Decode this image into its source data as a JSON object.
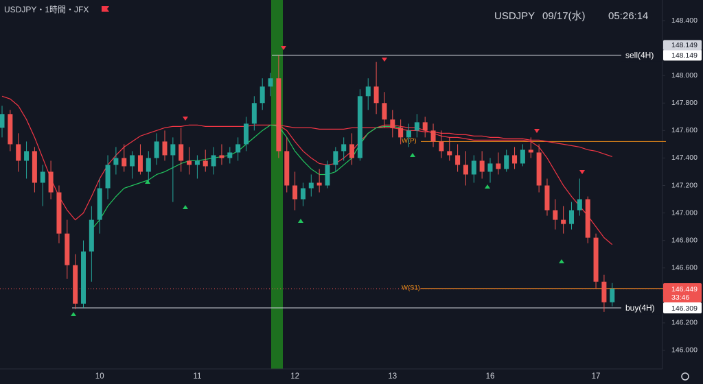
{
  "chart_data": {
    "type": "candlestick",
    "title": "USDJPY・1時間・JFX",
    "info_symbol": "USDJPY",
    "info_date": "09/17(水)",
    "info_time": "05:26:14",
    "up_color": "#26a69a",
    "down_color": "#ef5350",
    "grid": false,
    "ylim": [
      145.865,
      148.55
    ],
    "yticks": [
      {
        "value": 146,
        "label": "146.000"
      },
      {
        "value": 146.2,
        "label": "146.200"
      },
      {
        "value": 146.4,
        "label": "146.400"
      },
      {
        "value": 146.6,
        "label": "146.600"
      },
      {
        "value": 146.8,
        "label": "146.800"
      },
      {
        "value": 147,
        "label": "147.000"
      },
      {
        "value": 147.2,
        "label": "147.200"
      },
      {
        "value": 147.4,
        "label": "147.400"
      },
      {
        "value": 147.6,
        "label": "147.600"
      },
      {
        "value": 147.8,
        "label": "147.800"
      },
      {
        "value": 148,
        "label": "148.000"
      },
      {
        "value": 148.2,
        "label": "148.200"
      },
      {
        "value": 148.4,
        "label": "148.400"
      }
    ],
    "categories": [
      null,
      null,
      null,
      null,
      null,
      null,
      null,
      null,
      null,
      null,
      null,
      null,
      "10",
      null,
      null,
      null,
      null,
      null,
      null,
      null,
      null,
      null,
      null,
      null,
      "11",
      null,
      null,
      null,
      null,
      null,
      null,
      null,
      null,
      null,
      null,
      null,
      "12",
      null,
      null,
      null,
      null,
      null,
      null,
      null,
      null,
      null,
      null,
      null,
      "13",
      null,
      null,
      null,
      null,
      null,
      null,
      null,
      null,
      null,
      null,
      null,
      "16",
      null,
      null,
      null,
      null,
      null,
      null,
      null,
      null,
      null,
      null,
      null,
      null,
      "17",
      null,
      null
    ],
    "ohlc": [
      [
        147.62,
        147.78,
        147.55,
        147.72
      ],
      [
        147.72,
        147.75,
        147.45,
        147.5
      ],
      [
        147.5,
        147.58,
        147.3,
        147.38
      ],
      [
        147.38,
        147.52,
        147.25,
        147.45
      ],
      [
        147.45,
        147.48,
        147.15,
        147.22
      ],
      [
        147.22,
        147.35,
        147.05,
        147.3
      ],
      [
        147.3,
        147.38,
        147.1,
        147.15
      ],
      [
        147.15,
        147.2,
        146.78,
        146.85
      ],
      [
        146.85,
        146.95,
        146.52,
        146.62
      ],
      [
        146.62,
        146.7,
        146.3,
        146.34
      ],
      [
        146.34,
        146.8,
        146.31,
        146.72
      ],
      [
        146.72,
        147.05,
        146.5,
        146.95
      ],
      [
        146.95,
        147.25,
        146.85,
        147.18
      ],
      [
        147.18,
        147.42,
        147.1,
        147.35
      ],
      [
        147.35,
        147.48,
        147.28,
        147.4
      ],
      [
        147.4,
        147.5,
        147.3,
        147.34
      ],
      [
        147.34,
        147.45,
        147.25,
        147.42
      ],
      [
        147.42,
        147.5,
        147.28,
        147.3
      ],
      [
        147.3,
        147.45,
        147.22,
        147.4
      ],
      [
        147.4,
        147.58,
        147.35,
        147.52
      ],
      [
        147.52,
        147.6,
        147.38,
        147.42
      ],
      [
        147.42,
        147.55,
        147.08,
        147.5
      ],
      [
        147.5,
        147.62,
        147.3,
        147.38
      ],
      [
        147.38,
        147.48,
        147.28,
        147.35
      ],
      [
        147.35,
        147.42,
        147.25,
        147.38
      ],
      [
        147.38,
        147.46,
        147.3,
        147.34
      ],
      [
        147.34,
        147.48,
        147.28,
        147.42
      ],
      [
        147.42,
        147.5,
        147.35,
        147.4
      ],
      [
        147.4,
        147.48,
        147.36,
        147.44
      ],
      [
        147.44,
        147.55,
        147.38,
        147.5
      ],
      [
        147.5,
        147.7,
        147.45,
        147.65
      ],
      [
        147.65,
        147.85,
        147.6,
        147.8
      ],
      [
        147.8,
        147.98,
        147.75,
        147.92
      ],
      [
        147.92,
        148.02,
        147.85,
        147.98
      ],
      [
        147.98,
        148.149,
        147.4,
        147.45
      ],
      [
        147.45,
        147.55,
        147.15,
        147.2
      ],
      [
        147.2,
        147.3,
        147.02,
        147.1
      ],
      [
        147.1,
        147.22,
        147.05,
        147.18
      ],
      [
        147.18,
        147.28,
        147.12,
        147.22
      ],
      [
        147.22,
        147.32,
        147.15,
        147.2
      ],
      [
        147.2,
        147.38,
        147.18,
        147.35
      ],
      [
        147.35,
        147.48,
        147.3,
        147.45
      ],
      [
        147.45,
        147.55,
        147.38,
        147.5
      ],
      [
        147.5,
        147.58,
        147.35,
        147.4
      ],
      [
        147.4,
        147.9,
        147.38,
        147.85
      ],
      [
        147.85,
        147.98,
        147.75,
        147.92
      ],
      [
        147.92,
        148.1,
        147.72,
        147.8
      ],
      [
        147.8,
        147.88,
        147.62,
        147.68
      ],
      [
        147.68,
        147.75,
        147.55,
        147.62
      ],
      [
        147.62,
        147.68,
        147.5,
        147.55
      ],
      [
        147.55,
        147.65,
        147.48,
        147.6
      ],
      [
        147.6,
        147.72,
        147.55,
        147.66
      ],
      [
        147.66,
        147.7,
        147.55,
        147.6
      ],
      [
        147.6,
        147.65,
        147.48,
        147.52
      ],
      [
        147.52,
        147.6,
        147.4,
        147.45
      ],
      [
        147.45,
        147.55,
        147.38,
        147.42
      ],
      [
        147.42,
        147.5,
        147.3,
        147.35
      ],
      [
        147.35,
        147.45,
        147.2,
        147.28
      ],
      [
        147.28,
        147.42,
        147.22,
        147.38
      ],
      [
        147.38,
        147.45,
        147.25,
        147.3
      ],
      [
        147.3,
        147.4,
        147.22,
        147.36
      ],
      [
        147.36,
        147.44,
        147.28,
        147.32
      ],
      [
        147.32,
        147.46,
        147.3,
        147.42
      ],
      [
        147.42,
        147.48,
        147.32,
        147.36
      ],
      [
        147.36,
        147.5,
        147.34,
        147.46
      ],
      [
        147.46,
        147.55,
        147.4,
        147.44
      ],
      [
        147.44,
        147.5,
        147.15,
        147.2
      ],
      [
        147.2,
        147.25,
        146.98,
        147.02
      ],
      [
        147.02,
        147.1,
        146.88,
        146.95
      ],
      [
        146.95,
        147.05,
        146.85,
        146.92
      ],
      [
        146.92,
        147.08,
        146.88,
        147.02
      ],
      [
        147.02,
        147.25,
        146.98,
        147.1
      ],
      [
        147.1,
        147.12,
        146.78,
        146.82
      ],
      [
        146.82,
        146.85,
        146.45,
        146.5
      ],
      [
        146.5,
        146.55,
        146.28,
        146.35
      ],
      [
        146.35,
        146.49,
        146.32,
        146.449
      ]
    ],
    "lines": [
      {
        "color": "#f23645",
        "values": [
          147.85,
          147.83,
          147.78,
          147.68,
          147.55,
          147.4,
          147.25,
          147.12,
          147.02,
          146.95,
          147.0,
          147.12,
          147.25,
          147.35,
          147.42,
          147.48,
          147.52,
          147.56,
          147.58,
          147.6,
          147.62,
          147.63,
          147.63,
          147.64,
          147.64,
          147.63,
          147.63,
          147.63,
          147.63,
          147.63,
          147.63,
          147.64,
          147.64,
          147.64,
          147.64,
          147.63,
          147.62,
          147.62,
          147.62,
          147.61,
          147.61,
          147.61,
          147.61,
          147.62,
          147.62,
          147.62,
          147.62,
          147.62,
          147.62,
          147.61,
          147.6,
          147.6,
          147.59,
          147.59,
          147.58,
          147.58,
          147.57,
          147.57,
          147.56,
          147.56,
          147.55,
          147.55,
          147.54,
          147.54,
          147.54,
          147.53,
          147.53,
          147.52,
          147.51,
          147.5,
          147.49,
          147.48,
          147.46,
          147.45,
          147.43,
          147.41
        ]
      },
      {
        "color": "#f23645",
        "values": [
          null,
          null,
          null,
          null,
          null,
          null,
          null,
          null,
          null,
          null,
          null,
          null,
          null,
          null,
          null,
          null,
          null,
          null,
          null,
          null,
          null,
          null,
          null,
          null,
          null,
          null,
          null,
          null,
          null,
          null,
          null,
          null,
          null,
          null,
          147.64,
          147.6,
          147.52,
          147.45,
          147.4,
          147.36,
          147.35,
          147.36,
          147.4,
          147.45,
          147.52,
          147.58,
          147.62,
          147.64,
          147.64,
          147.63,
          147.62,
          147.62,
          147.6,
          147.58,
          147.56,
          147.55,
          147.55,
          147.54,
          147.53,
          147.53,
          147.53,
          147.53,
          147.53,
          147.53,
          147.53,
          147.52,
          147.48,
          147.4,
          147.3,
          147.2,
          147.12,
          147.05,
          146.98,
          146.9,
          146.82,
          146.77
        ]
      },
      {
        "color": "#22c55e",
        "values": [
          null,
          null,
          null,
          null,
          null,
          null,
          null,
          null,
          null,
          null,
          null,
          146.88,
          146.95,
          147.05,
          147.12,
          147.18,
          147.2,
          147.22,
          147.24,
          147.28,
          147.3,
          147.33,
          147.36,
          147.38,
          147.38,
          147.39,
          147.4,
          147.41,
          147.42,
          147.45,
          147.5,
          147.55,
          147.6,
          147.64,
          147.63,
          147.55,
          147.45,
          147.38,
          147.32,
          147.28,
          147.28,
          147.3,
          147.35,
          147.4,
          147.5,
          147.58,
          147.62,
          147.63,
          147.63,
          147.62,
          null,
          null,
          null,
          null,
          null,
          null,
          null,
          null,
          null,
          null,
          null,
          null,
          null,
          null,
          null,
          null,
          null,
          null,
          null,
          null,
          null,
          null,
          null,
          null,
          null,
          null
        ]
      }
    ],
    "levels": [
      {
        "label": "sell(4H)",
        "value": 148.149,
        "color": "#d1d4dc"
      },
      {
        "label": "buy(4H)",
        "value": 146.309,
        "color": "#d1d4dc"
      },
      {
        "label": "W(P)",
        "value": 147.52,
        "color": "#f7931a"
      },
      {
        "label": "W(S1)",
        "value": 146.45,
        "color": "#f7931a"
      }
    ],
    "current_price": 146.449,
    "countdown": "33:46"
  }
}
